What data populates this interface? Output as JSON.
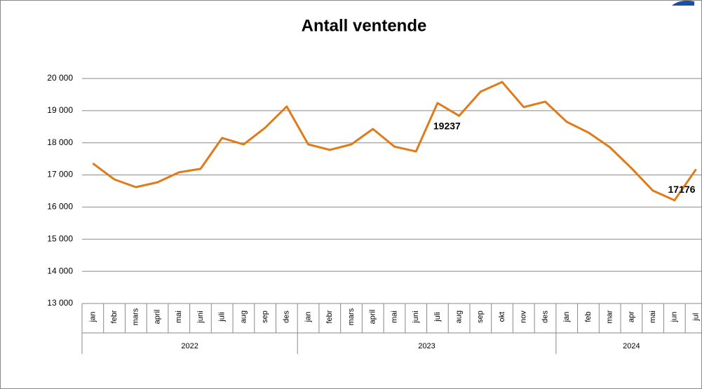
{
  "chart_data": {
    "type": "line",
    "title": "Antall ventende",
    "groups": [
      {
        "name": "2022",
        "categories": [
          "jan",
          "febr",
          "mars",
          "april",
          "mai",
          "juni",
          "juli",
          "aug",
          "sep",
          "des"
        ]
      },
      {
        "name": "2023",
        "categories": [
          "jan",
          "febr",
          "mars",
          "april",
          "mai",
          "juni",
          "juli",
          "aug",
          "sep",
          "okt",
          "nov",
          "des"
        ]
      },
      {
        "name": "2024",
        "categories": [
          "jan",
          "feb",
          "mar",
          "apr",
          "mai",
          "jun",
          "jul"
        ]
      }
    ],
    "values": [
      17360,
      16860,
      16620,
      16770,
      17080,
      17190,
      18150,
      17950,
      18470,
      19130,
      17950,
      17780,
      17950,
      18430,
      17880,
      17730,
      19237,
      18840,
      19590,
      19890,
      19110,
      19280,
      18650,
      18320,
      17860,
      17210,
      16510,
      16210,
      17176
    ],
    "value_labels": [
      null,
      null,
      null,
      null,
      null,
      null,
      null,
      null,
      null,
      null,
      null,
      null,
      null,
      null,
      null,
      null,
      "19237",
      null,
      null,
      null,
      null,
      null,
      null,
      null,
      null,
      null,
      null,
      null,
      "17176"
    ],
    "color": "#e07b1a",
    "ylim": [
      13000,
      20000
    ],
    "yticks": [
      {
        "value": 13000,
        "label": "13 000"
      },
      {
        "value": 14000,
        "label": "14 000"
      },
      {
        "value": 15000,
        "label": "15 000"
      },
      {
        "value": 16000,
        "label": "16 000"
      },
      {
        "value": 17000,
        "label": "17 000"
      },
      {
        "value": 18000,
        "label": "18 000"
      },
      {
        "value": 19000,
        "label": "19 000"
      },
      {
        "value": 20000,
        "label": "20 000"
      }
    ],
    "grid": true
  }
}
